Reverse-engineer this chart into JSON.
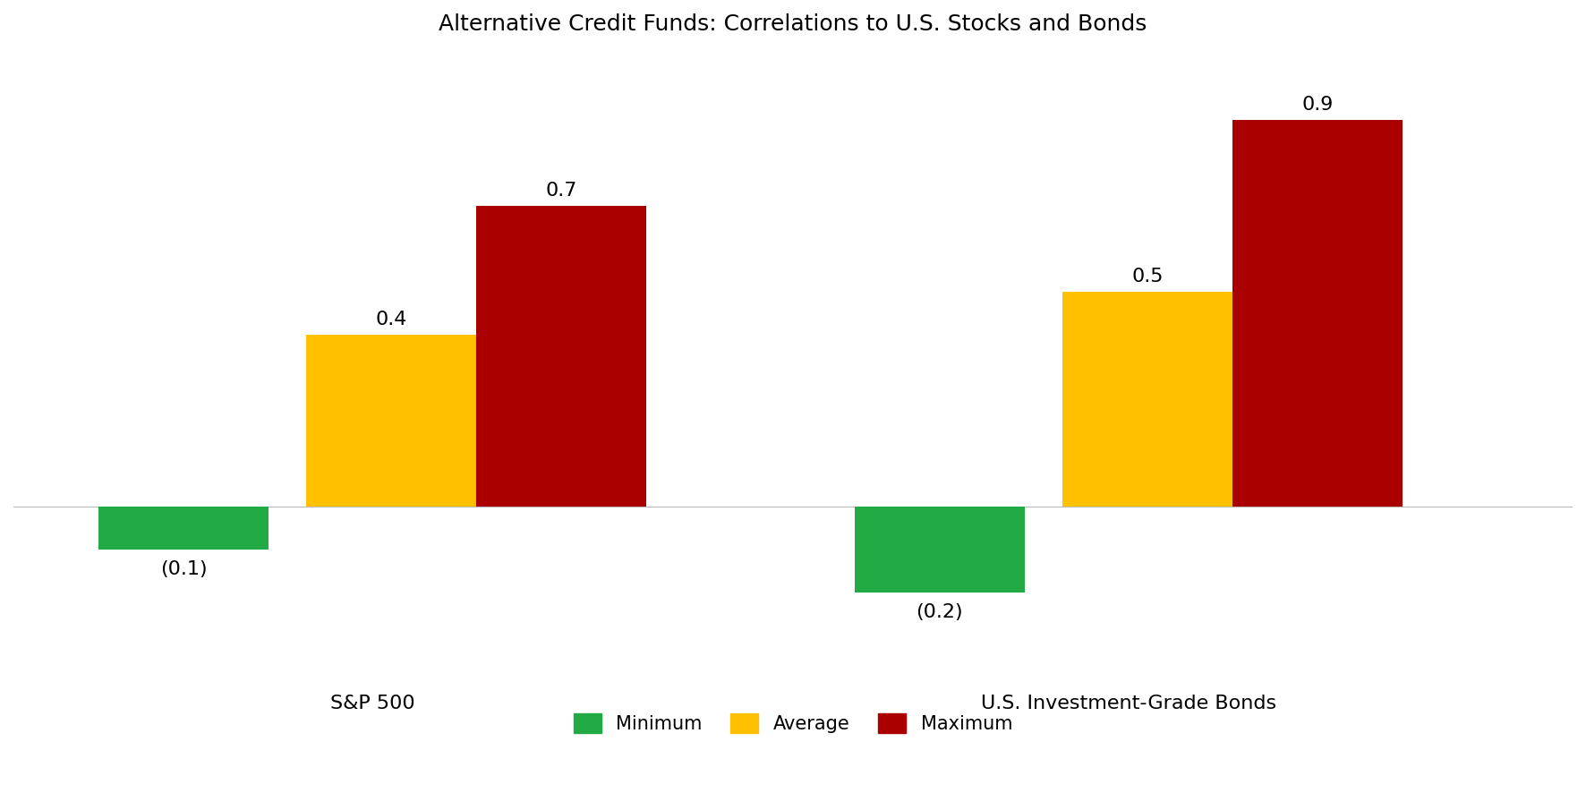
{
  "title": "Alternative Credit Funds: Correlations to U.S. Stocks and Bonds",
  "groups": [
    "S&P 500",
    "U.S. Investment-Grade Bonds"
  ],
  "series": {
    "Minimum": [
      -0.1,
      -0.2
    ],
    "Average": [
      0.4,
      0.5
    ],
    "Maximum": [
      0.7,
      0.9
    ]
  },
  "colors": {
    "Minimum": "#22AA44",
    "Average": "#FFC000",
    "Maximum": "#AA0000"
  },
  "labels": {
    "Minimum": [
      "(0.1)",
      "(0.2)"
    ],
    "Average": [
      "0.4",
      "0.5"
    ],
    "Maximum": [
      "0.7",
      "0.9"
    ]
  },
  "ylim": [
    -0.38,
    1.05
  ],
  "bar_width": 0.18,
  "title_fontsize": 18,
  "label_fontsize": 16,
  "tick_fontsize": 16,
  "legend_fontsize": 15,
  "background_color": "#FFFFFF",
  "group_centers": [
    0.3,
    1.1
  ],
  "xlim": [
    -0.1,
    1.55
  ]
}
